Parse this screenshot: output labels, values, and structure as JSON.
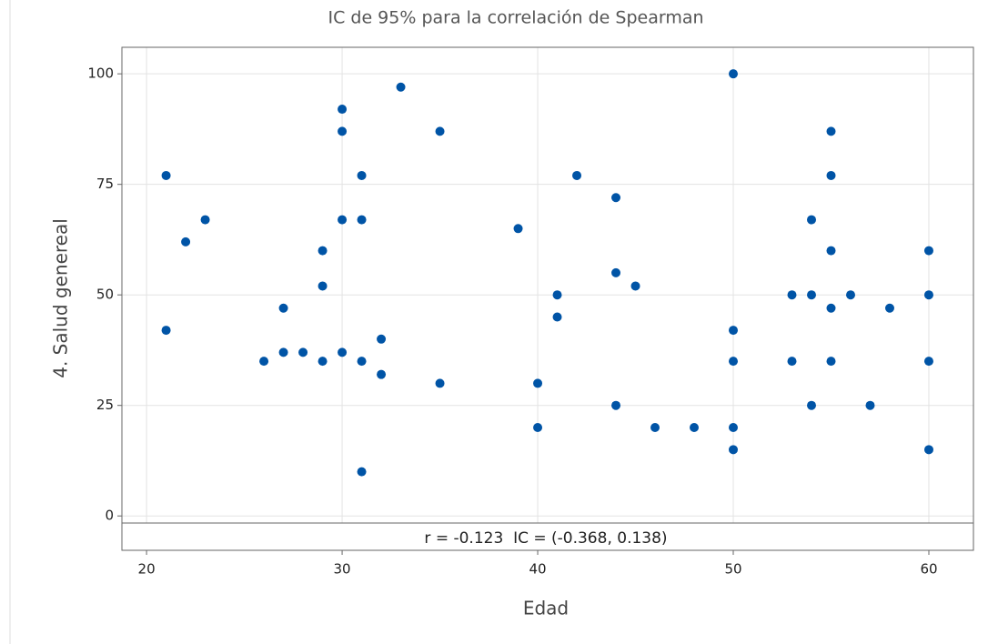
{
  "chart_data": {
    "type": "scatter",
    "title": "IC de 95% para la correlación de Spearman",
    "x_label": "Edad",
    "y_label": "4. Salud genereal",
    "annotation": "r = -0.123  IC = (-0.368, 0.138)",
    "color": "#0054a6",
    "grid": true,
    "xlim": [
      18.74,
      62.28
    ],
    "ylim": [
      -1.6,
      106
    ],
    "xticks": [
      20,
      30,
      40,
      50,
      60
    ],
    "yticks": [
      0,
      25,
      50,
      75,
      100
    ],
    "x": [
      21,
      21,
      22,
      23,
      26,
      27,
      27,
      28,
      29,
      29,
      29,
      30,
      30,
      30,
      30,
      31,
      31,
      31,
      31,
      32,
      32,
      33,
      35,
      35,
      39,
      40,
      40,
      41,
      41,
      42,
      44,
      44,
      44,
      45,
      46,
      48,
      50,
      50,
      50,
      50,
      50,
      53,
      53,
      54,
      54,
      54,
      55,
      55,
      55,
      55,
      55,
      56,
      57,
      58,
      60,
      60,
      60,
      60
    ],
    "values": [
      77,
      42,
      62,
      67,
      35,
      47,
      37,
      37,
      60,
      52,
      35,
      92,
      87,
      67,
      37,
      77,
      67,
      35,
      10,
      40,
      32,
      97,
      87,
      30,
      65,
      30,
      20,
      50,
      45,
      77,
      72,
      55,
      25,
      52,
      20,
      20,
      100,
      42,
      35,
      20,
      15,
      50,
      35,
      67,
      50,
      25,
      87,
      77,
      60,
      47,
      35,
      50,
      25,
      47,
      60,
      50,
      35,
      15
    ]
  }
}
